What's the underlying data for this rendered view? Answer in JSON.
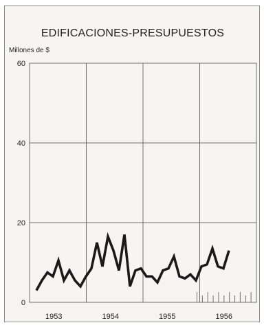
{
  "chart_data": {
    "type": "line",
    "title": "EDIFICACIONES-PRESUPUESTOS",
    "ylabel": "Millones de $",
    "xlabel": "",
    "ylim": [
      0,
      60
    ],
    "y_ticks": [
      0,
      20,
      40,
      60
    ],
    "y_tick_labels": [
      "0",
      "20",
      "40",
      "60"
    ],
    "x_tick_labels": [
      "1953",
      "1954",
      "1955",
      "1956"
    ],
    "grid": true,
    "series": [
      {
        "values": [
          3,
          5.5,
          7.5,
          6.5,
          10.5,
          5.5,
          8,
          5.5,
          4,
          6.5,
          8.5,
          15,
          9,
          16.5,
          13,
          8,
          17,
          4,
          8,
          8.5,
          6.5,
          6.5,
          5,
          8,
          8.5,
          11.5,
          6.5,
          6,
          7,
          5.5,
          9,
          9.5,
          13.5,
          9,
          8.5,
          13
        ]
      }
    ],
    "colors": {
      "line": "#1a1a1a",
      "grid": "#6e6e6e",
      "background": "#f6f5f1"
    }
  }
}
